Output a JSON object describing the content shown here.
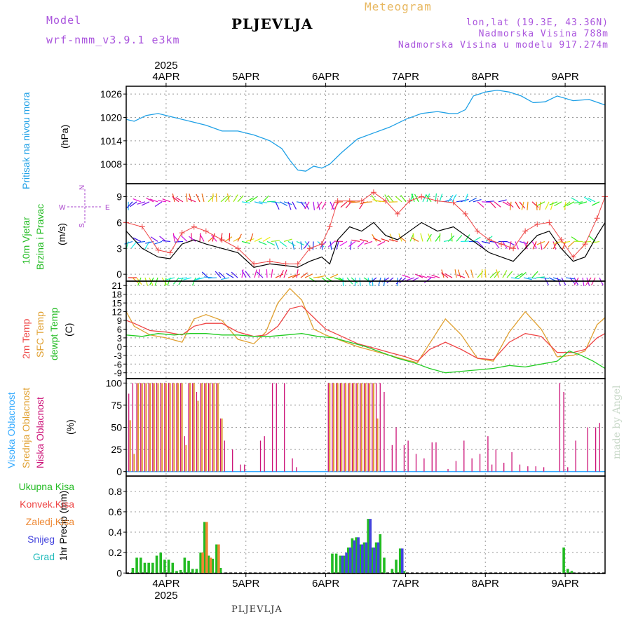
{
  "header": {
    "model_label": "Model",
    "model_name": "wrf-nmm_v3.9.1 e3km",
    "title": "PLJEVLJA",
    "meteogram": "Meteogram",
    "lonlat": "lon,lat (19.3E, 43.36N)",
    "elevation": "Nadmorska Visina 788m",
    "model_elevation": "Nadmorska Visina u modelu 917.274m"
  },
  "footer": {
    "station": "PLJEVLJA",
    "credit": "made by Angel"
  },
  "colors": {
    "pressure": "#1ea0e6",
    "wind_speed": "#000000",
    "wind_gust": "#ee4444",
    "t2m": "#ee4444",
    "sfc": "#e0a030",
    "dew": "#22cc22",
    "high_cloud": "#33aaff",
    "mid_cloud": "#e0a030",
    "low_cloud": "#cc1177",
    "precip_total": "#22bb22",
    "precip_conv": "#ee4444",
    "precip_frozen": "#ee8833",
    "snow": "#4444dd",
    "hail": "#22bbbb"
  },
  "chart_data": [
    {
      "type": "line",
      "name": "pressure",
      "title": "Pritisak na nivou mora",
      "ylabel": "(hPa)",
      "ylim": [
        1003,
        1028
      ],
      "yticks": [
        1008,
        1014,
        1020,
        1026
      ],
      "x_days": [
        3.5,
        9.5
      ],
      "date_labels": [
        "4APR",
        "5APR",
        "6APR",
        "7APR",
        "8APR",
        "9APR"
      ],
      "year_label": "2025",
      "series": [
        {
          "name": "MSLP",
          "x": [
            3.5,
            3.6,
            3.75,
            3.9,
            4.1,
            4.3,
            4.5,
            4.7,
            4.9,
            5.1,
            5.3,
            5.45,
            5.55,
            5.65,
            5.75,
            5.85,
            5.95,
            6.05,
            6.2,
            6.4,
            6.6,
            6.8,
            7.0,
            7.2,
            7.4,
            7.55,
            7.65,
            7.75,
            7.85,
            8.0,
            8.15,
            8.3,
            8.45,
            8.6,
            8.75,
            8.9,
            9.1,
            9.3,
            9.5
          ],
          "values": [
            1019.5,
            1019,
            1020.5,
            1021,
            1020,
            1019,
            1018,
            1016.5,
            1016.5,
            1015.5,
            1014,
            1012,
            1009,
            1006.5,
            1006.2,
            1007.5,
            1007,
            1008,
            1011,
            1014.5,
            1016,
            1017.5,
            1019.5,
            1021,
            1021.5,
            1021,
            1021,
            1022,
            1025.5,
            1026.5,
            1027,
            1026.5,
            1025.5,
            1023.8,
            1024,
            1025.5,
            1024.3,
            1024.6,
            1023.2
          ]
        }
      ]
    },
    {
      "type": "line",
      "name": "wind",
      "title": "10m Vjetar",
      "subtitle": "Brzina i Pravac",
      "ylabel": "(m/s)",
      "compass": [
        "N",
        "W",
        "E",
        "S"
      ],
      "ylim": [
        -0.8,
        10.5
      ],
      "yticks": [
        0,
        3,
        6,
        9
      ],
      "series": [
        {
          "name": "speed",
          "x": [
            3.5,
            3.7,
            3.9,
            4.05,
            4.2,
            4.35,
            4.5,
            4.7,
            4.9,
            5.1,
            5.3,
            5.5,
            5.65,
            5.8,
            5.95,
            6.05,
            6.15,
            6.3,
            6.45,
            6.6,
            6.75,
            6.9,
            7.05,
            7.2,
            7.4,
            7.6,
            7.75,
            7.9,
            8.05,
            8.2,
            8.35,
            8.5,
            8.65,
            8.8,
            8.95,
            9.1,
            9.25,
            9.4,
            9.5
          ],
          "values": [
            5,
            3,
            2,
            1.8,
            3.5,
            4,
            3.5,
            3,
            2.5,
            0.8,
            1.2,
            1,
            0.8,
            1.5,
            2,
            1.2,
            4,
            5.5,
            5,
            6,
            4.5,
            4,
            5,
            6,
            5,
            5.5,
            4.5,
            3.5,
            2.5,
            2,
            1.5,
            3,
            4.5,
            5,
            3,
            1.5,
            2,
            4.5,
            6
          ]
        },
        {
          "name": "gust",
          "x": [
            3.5,
            3.7,
            3.9,
            4.05,
            4.2,
            4.35,
            4.5,
            4.7,
            4.9,
            5.1,
            5.3,
            5.5,
            5.65,
            5.8,
            5.95,
            6.05,
            6.15,
            6.3,
            6.45,
            6.6,
            6.75,
            6.9,
            7.05,
            7.2,
            7.4,
            7.6,
            7.75,
            7.9,
            8.05,
            8.2,
            8.35,
            8.5,
            8.65,
            8.8,
            8.95,
            9.1,
            9.25,
            9.4,
            9.5
          ],
          "values": [
            6,
            5.5,
            2.8,
            2.5,
            4.8,
            5.5,
            5,
            4,
            3,
            1.2,
            1.5,
            1.2,
            1.2,
            3,
            3.5,
            5.5,
            8.5,
            8.5,
            8.5,
            9.5,
            8.5,
            7,
            8.5,
            9,
            8.5,
            8.3,
            7,
            5,
            4,
            3.5,
            3,
            5,
            5.8,
            6,
            4,
            2,
            3.5,
            6.5,
            9
          ]
        }
      ]
    },
    {
      "type": "line",
      "name": "temperature",
      "labels": [
        "2m Temp",
        "SFC Temp",
        "dewpt Temp"
      ],
      "ylabel": "(C)",
      "ylim": [
        -11,
        22.5
      ],
      "yticks": [
        -9,
        -6,
        -3,
        0,
        3,
        6,
        9,
        12,
        15,
        18,
        21
      ],
      "series": [
        {
          "name": "2m Temp",
          "x": [
            3.5,
            3.6,
            3.8,
            4.0,
            4.2,
            4.35,
            4.5,
            4.7,
            4.9,
            5.1,
            5.25,
            5.4,
            5.55,
            5.7,
            5.85,
            6.0,
            6.2,
            6.4,
            6.6,
            6.8,
            7.0,
            7.15,
            7.3,
            7.5,
            7.7,
            7.9,
            8.1,
            8.3,
            8.5,
            8.7,
            8.9,
            9.1,
            9.25,
            9.4,
            9.5
          ],
          "values": [
            9,
            8,
            5.5,
            5,
            4,
            7,
            8,
            8,
            5,
            3.5,
            4,
            7,
            13,
            14,
            10,
            6,
            3.5,
            1,
            -0.5,
            -2,
            -3.5,
            -5,
            -1,
            1.5,
            -1,
            -4,
            -4.5,
            1.5,
            4.5,
            3.5,
            -2,
            -2,
            -1,
            3,
            4.5
          ]
        },
        {
          "name": "SFC Temp",
          "x": [
            3.5,
            3.6,
            3.8,
            4.0,
            4.2,
            4.35,
            4.5,
            4.7,
            4.9,
            5.1,
            5.25,
            5.4,
            5.55,
            5.7,
            5.85,
            6.0,
            6.2,
            6.4,
            6.6,
            6.8,
            7.0,
            7.15,
            7.3,
            7.5,
            7.7,
            7.9,
            8.1,
            8.3,
            8.5,
            8.7,
            8.9,
            9.1,
            9.25,
            9.4,
            9.5
          ],
          "values": [
            12,
            7,
            4,
            3,
            1.5,
            9.5,
            11,
            9,
            2.5,
            1,
            5,
            15,
            20,
            16,
            6,
            4,
            2,
            0,
            -1.5,
            -3,
            -4.5,
            -5.5,
            1,
            9.5,
            4,
            -4,
            -5,
            5,
            12,
            6,
            -3.5,
            -3,
            -1.5,
            7.5,
            10
          ]
        },
        {
          "name": "dewpt Temp",
          "x": [
            3.5,
            3.7,
            3.9,
            4.1,
            4.3,
            4.5,
            4.7,
            4.9,
            5.1,
            5.3,
            5.5,
            5.7,
            5.9,
            6.1,
            6.3,
            6.5,
            6.7,
            6.9,
            7.1,
            7.3,
            7.5,
            7.7,
            7.9,
            8.1,
            8.3,
            8.5,
            8.7,
            8.9,
            9.05,
            9.2,
            9.35,
            9.5
          ],
          "values": [
            4,
            3.5,
            4.5,
            4,
            4.5,
            4.5,
            4,
            4,
            3.5,
            3.5,
            4,
            4.5,
            3.5,
            3,
            1.5,
            0,
            -2,
            -4,
            -5.5,
            -7.5,
            -9,
            -8.5,
            -8,
            -7.5,
            -6.5,
            -7,
            -6,
            -5,
            -1.5,
            -3,
            -5,
            -7.5
          ]
        }
      ]
    },
    {
      "type": "bar",
      "name": "clouds",
      "labels": [
        "Visoka Oblacnost",
        "Srednja Oblacnost",
        "Niska Oblacnost"
      ],
      "ylabel": "(%)",
      "ylim": [
        -5,
        105
      ],
      "yticks": [
        0,
        25,
        50,
        75,
        100
      ],
      "series": [
        {
          "name": "Niska",
          "x": [
            3.55,
            3.6,
            3.65,
            3.7,
            3.75,
            3.8,
            3.85,
            3.9,
            3.95,
            4.0,
            4.05,
            4.1,
            4.15,
            4.2,
            4.25,
            4.3,
            4.35,
            4.4,
            4.45,
            4.5,
            4.55,
            4.6,
            4.65,
            4.7,
            4.75,
            4.85,
            4.95,
            5.0,
            5.2,
            5.25,
            5.35,
            5.4,
            5.5,
            5.6,
            5.65,
            6.05,
            6.1,
            6.15,
            6.2,
            6.25,
            6.3,
            6.35,
            6.4,
            6.45,
            6.5,
            6.55,
            6.6,
            6.65,
            6.7,
            6.75,
            6.85,
            6.9,
            7.0,
            7.05,
            7.15,
            7.25,
            7.35,
            7.4,
            7.55,
            7.65,
            7.75,
            7.85,
            7.95,
            8.05,
            8.1,
            8.15,
            8.25,
            8.35,
            8.45,
            8.55,
            8.65,
            8.75,
            8.95,
            9.0,
            9.05,
            9.15,
            9.3,
            9.4,
            9.45
          ],
          "values": [
            88,
            100,
            100,
            100,
            100,
            100,
            100,
            100,
            100,
            100,
            100,
            100,
            100,
            100,
            40,
            100,
            100,
            90,
            100,
            100,
            100,
            100,
            100,
            60,
            35,
            25,
            8,
            8,
            35,
            40,
            100,
            100,
            100,
            15,
            5,
            100,
            100,
            100,
            100,
            100,
            100,
            100,
            100,
            100,
            100,
            100,
            100,
            100,
            100,
            90,
            30,
            50,
            30,
            35,
            20,
            15,
            33,
            33,
            3,
            12,
            35,
            15,
            20,
            40,
            8,
            25,
            10,
            22,
            8,
            6,
            6,
            5,
            100,
            90,
            5,
            35,
            50,
            50,
            55
          ]
        },
        {
          "name": "Srednja",
          "x": [
            3.55,
            3.6,
            3.65,
            3.7,
            3.75,
            3.8,
            3.85,
            3.9,
            3.95,
            4.0,
            4.05,
            4.1,
            4.15,
            4.2,
            4.25,
            4.3,
            4.35,
            4.4,
            4.45,
            4.5,
            4.55,
            4.6,
            4.65,
            4.7,
            4.75,
            6.05,
            6.1,
            6.15,
            6.2,
            6.25,
            6.3,
            6.35,
            6.4,
            6.45,
            6.5,
            6.55,
            6.6,
            6.65,
            6.7
          ],
          "values": [
            58,
            20,
            100,
            100,
            100,
            100,
            100,
            100,
            100,
            100,
            100,
            100,
            100,
            100,
            30,
            100,
            100,
            80,
            100,
            100,
            100,
            100,
            100,
            60,
            0,
            100,
            100,
            100,
            100,
            100,
            100,
            100,
            100,
            100,
            100,
            100,
            100,
            60,
            0
          ]
        },
        {
          "name": "Visoka",
          "x": [],
          "values": []
        }
      ]
    },
    {
      "type": "bar",
      "name": "precip",
      "labels": [
        "Ukupna Kisa",
        "Konvek.Kisa",
        "Zaledj.Kisa",
        "Snijeg",
        "Grad"
      ],
      "ylabel": "1hr Precip (mm)",
      "ylim": [
        -0.005,
        0.95
      ],
      "yticks": [
        0,
        0.2,
        0.4,
        0.6,
        0.8
      ],
      "series": [
        {
          "name": "Ukupna Kisa",
          "x": [
            3.6,
            3.65,
            3.7,
            3.75,
            3.8,
            3.85,
            3.9,
            3.95,
            4.0,
            4.05,
            4.1,
            4.15,
            4.2,
            4.25,
            4.3,
            4.35,
            4.4,
            4.45,
            4.5,
            4.55,
            4.6,
            4.65,
            4.7,
            6.1,
            6.15,
            6.2,
            6.25,
            6.3,
            6.35,
            6.4,
            6.45,
            6.5,
            6.55,
            6.6,
            6.65,
            6.7,
            6.75,
            6.85,
            6.9,
            6.95,
            7.0,
            9.0,
            9.05,
            9.1
          ],
          "values": [
            0.05,
            0.15,
            0.15,
            0.1,
            0.1,
            0.1,
            0.17,
            0.2,
            0.13,
            0.13,
            0.1,
            0.02,
            0.03,
            0.15,
            0.12,
            0.04,
            0.04,
            0.2,
            0.5,
            0.17,
            0.14,
            0.28,
            0.05,
            0.19,
            0.19,
            0.17,
            0.17,
            0.25,
            0.34,
            0.35,
            0.28,
            0.3,
            0.53,
            0.25,
            0.3,
            0.38,
            0.15,
            0.04,
            0.13,
            0.24,
            0.02,
            0.25,
            0.04,
            0.02
          ]
        },
        {
          "name": "Snijeg",
          "x": [
            6.2,
            6.25,
            6.3,
            6.35,
            6.4,
            6.45,
            6.5,
            6.55,
            6.6,
            6.65,
            6.95
          ],
          "values": [
            0.17,
            0.2,
            0.25,
            0.32,
            0.35,
            0.28,
            0.3,
            0.53,
            0.25,
            0.3,
            0.24
          ]
        },
        {
          "name": "Zaledj.Kisa",
          "x": [
            4.45,
            4.5,
            4.55,
            4.65
          ],
          "values": [
            0.2,
            0.5,
            0.15,
            0.28
          ]
        }
      ]
    }
  ]
}
